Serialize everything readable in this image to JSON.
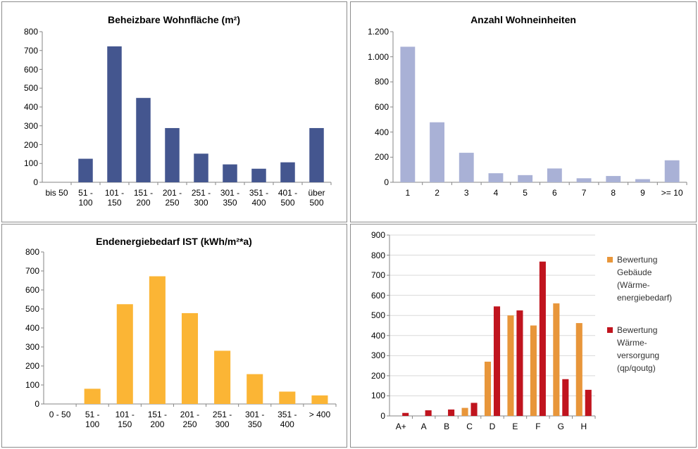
{
  "chart_data": [
    {
      "type": "bar",
      "title": "Beheizbare Wohnfläche (m²)",
      "categories": [
        "bis 50",
        "51 - 100",
        "101 - 150",
        "151 - 200",
        "201 - 250",
        "251 - 300",
        "301 - 350",
        "351 - 400",
        "401 - 500",
        "über 500"
      ],
      "values": [
        0,
        125,
        722,
        448,
        288,
        152,
        95,
        72,
        106,
        288
      ],
      "color": "#44568f",
      "ylim": [
        0,
        800
      ],
      "yticks": [
        0,
        100,
        200,
        300,
        400,
        500,
        600,
        700,
        800
      ],
      "grid": false
    },
    {
      "type": "bar",
      "title": "Anzahl Wohneinheiten",
      "categories": [
        "1",
        "2",
        "3",
        "4",
        "5",
        "6",
        "7",
        "8",
        "9",
        ">= 10"
      ],
      "values": [
        1080,
        478,
        235,
        72,
        57,
        110,
        32,
        50,
        25,
        175
      ],
      "color": "#a9b1d6",
      "ylim": [
        0,
        1200
      ],
      "yticks": [
        0,
        200,
        400,
        600,
        800,
        {
          "value": 1000,
          "label": "1.000"
        },
        {
          "value": 1200,
          "label": "1.200"
        }
      ],
      "grid": false
    },
    {
      "type": "bar",
      "title": "Endenergiebedarf IST (kWh/m²*a)",
      "categories": [
        "0 - 50",
        "51 - 100",
        "101 - 150",
        "151 - 200",
        "201 - 250",
        "251 - 300",
        "301 - 350",
        "351 - 400",
        "> 400"
      ],
      "values": [
        0,
        80,
        525,
        672,
        478,
        280,
        157,
        65,
        45
      ],
      "color": "#fbb535",
      "ylim": [
        0,
        800
      ],
      "yticks": [
        0,
        100,
        200,
        300,
        400,
        500,
        600,
        700,
        800
      ],
      "grid": false
    },
    {
      "type": "bar",
      "categories": [
        "A+",
        "A",
        "B",
        "C",
        "D",
        "E",
        "F",
        "G",
        "H"
      ],
      "series": [
        {
          "name": "Bewertung Gebäude (Wärme-energiebedarf)",
          "color": "#e8963a",
          "values": [
            0,
            0,
            0,
            40,
            270,
            500,
            450,
            560,
            462
          ]
        },
        {
          "name": "Bewertung Wärme-versorgung (qp/qoutg)",
          "color": "#c0141e",
          "values": [
            15,
            28,
            32,
            65,
            545,
            525,
            768,
            183,
            130
          ]
        }
      ],
      "ylim": [
        0,
        900
      ],
      "yticks": [
        0,
        100,
        200,
        300,
        400,
        500,
        600,
        700,
        800,
        900
      ],
      "grid": true,
      "legend": "right"
    }
  ]
}
